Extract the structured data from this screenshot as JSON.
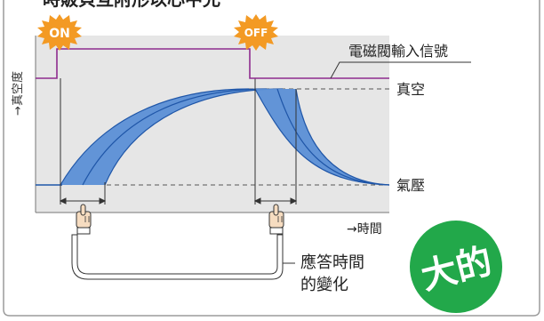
{
  "title_partial": "時販貝互附形以心中允",
  "labels": {
    "y_axis": "→真空度",
    "x_axis": "→時間",
    "signal": "電磁閥輸入信號",
    "vacuum": "真空",
    "atmosphere": "氣壓",
    "response_line1": "應答時間",
    "response_line2": "的變化"
  },
  "badges": {
    "on": "ON",
    "off": "OFF",
    "stamp": "大的"
  },
  "colors": {
    "plot_bg": "#e6e6e6",
    "signal_line": "#8e2c8e",
    "curve_fill": "#5b8fd6",
    "curve_stroke": "#1f56a8",
    "burst": "#f39a24",
    "stamp_bg": "#22a84a",
    "frame": "#9c9c9c"
  },
  "icons": [
    "pointing-hand-icon",
    "pointing-hand-icon"
  ]
}
